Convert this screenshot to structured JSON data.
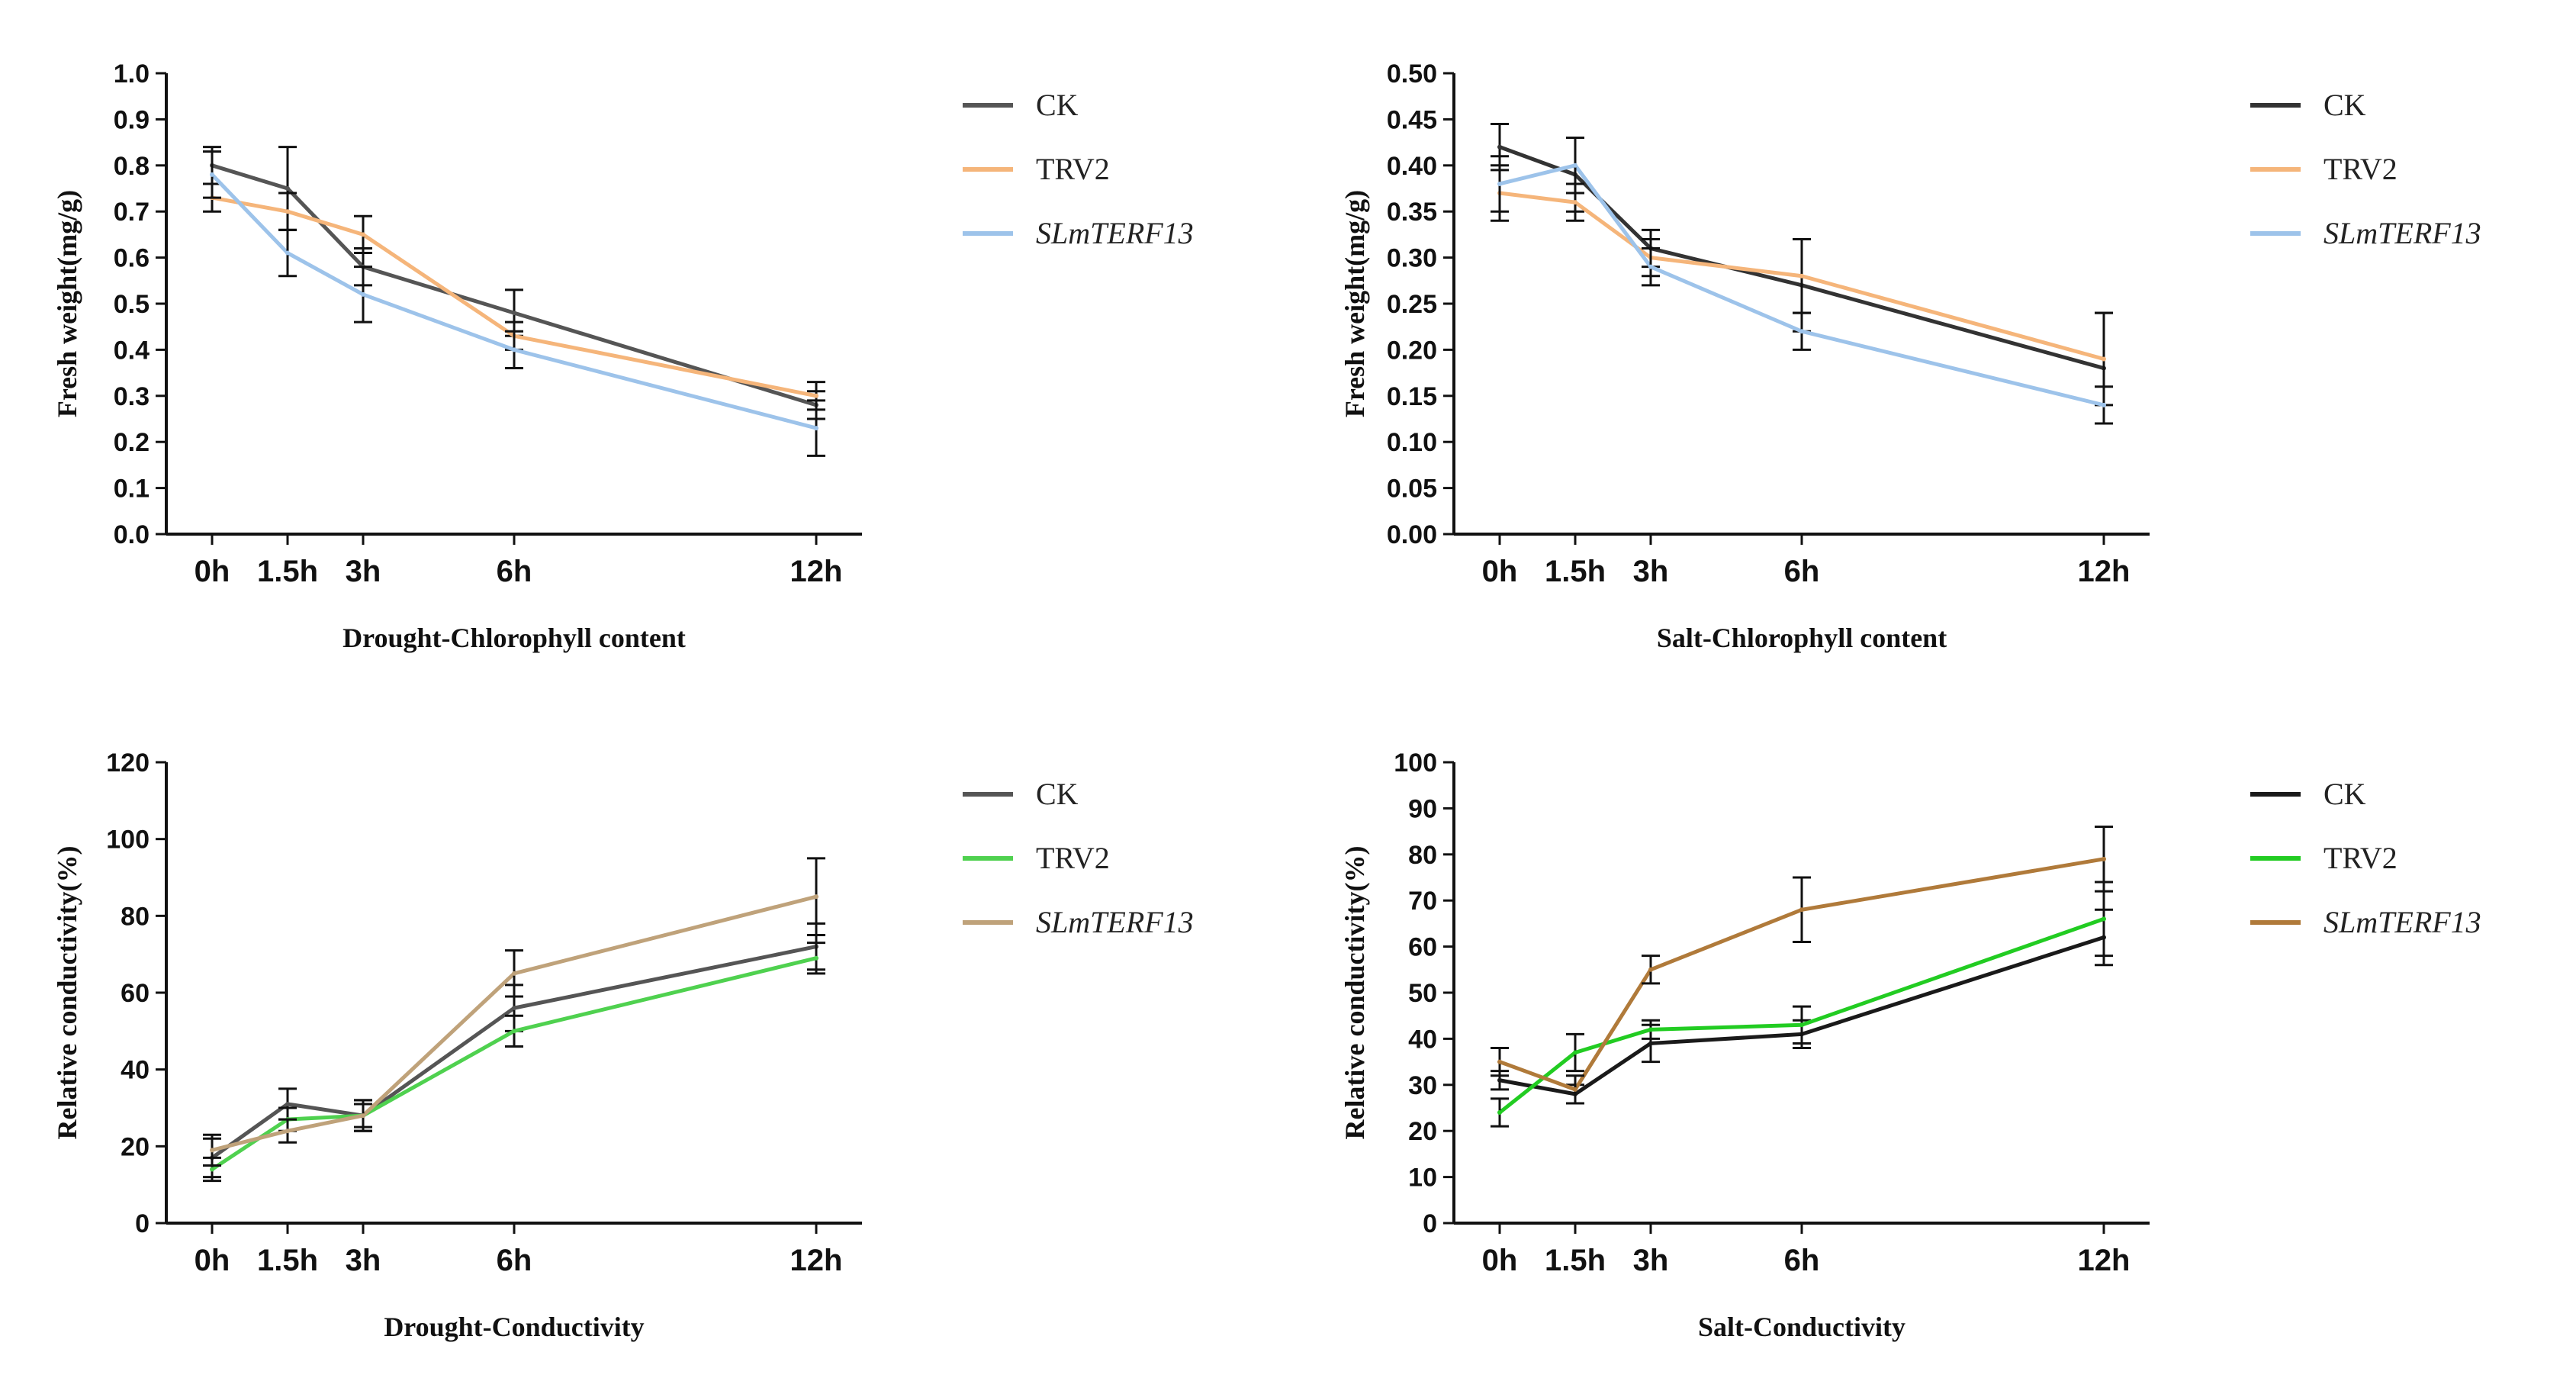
{
  "chart_data": [
    {
      "type": "line",
      "title": "",
      "xlabel": "Drought-Chlorophyll content",
      "ylabel": "Fresh weight(mg/g)",
      "categories": [
        "0h",
        "1.5h",
        "3h",
        "6h",
        "12h"
      ],
      "x": [
        0,
        1.5,
        3,
        6,
        12
      ],
      "ylim": [
        0,
        1.0
      ],
      "yticks": [
        0.0,
        0.1,
        0.2,
        0.3,
        0.4,
        0.5,
        0.6,
        0.7,
        0.8,
        0.9,
        1.0
      ],
      "ytick_labels": [
        "0.0",
        "0.1",
        "0.2",
        "0.3",
        "0.4",
        "0.5",
        "0.6",
        "0.7",
        "0.8",
        "0.9",
        "1.0"
      ],
      "legend_position": "right",
      "series": [
        {
          "name": "CK",
          "italic": false,
          "color": "#555555",
          "values": [
            0.8,
            0.75,
            0.58,
            0.48,
            0.28
          ],
          "errors": [
            0.04,
            0.09,
            0.04,
            0.05,
            0.03
          ]
        },
        {
          "name": "TRV2",
          "italic": false,
          "color": "#F5B57A",
          "values": [
            0.73,
            0.7,
            0.65,
            0.43,
            0.3
          ],
          "errors": [
            0.03,
            0.04,
            0.04,
            0.03,
            0.03
          ]
        },
        {
          "name": "SLmTERF13",
          "italic": true,
          "color": "#9DC3EA",
          "values": [
            0.78,
            0.61,
            0.52,
            0.4,
            0.23
          ],
          "errors": [
            0.05,
            0.05,
            0.06,
            0.04,
            0.06
          ]
        }
      ]
    },
    {
      "type": "line",
      "title": "",
      "xlabel": "Salt-Chlorophyll content",
      "ylabel": "Fresh weight(mg/g)",
      "categories": [
        "0h",
        "1.5h",
        "3h",
        "6h",
        "12h"
      ],
      "x": [
        0,
        1.5,
        3,
        6,
        12
      ],
      "ylim": [
        0,
        0.5
      ],
      "yticks": [
        0.0,
        0.05,
        0.1,
        0.15,
        0.2,
        0.25,
        0.3,
        0.35,
        0.4,
        0.45,
        0.5
      ],
      "ytick_labels": [
        "0.00",
        "0.05",
        "0.10",
        "0.15",
        "0.20",
        "0.25",
        "0.30",
        "0.35",
        "0.40",
        "0.45",
        "0.50"
      ],
      "legend_position": "right",
      "series": [
        {
          "name": "CK",
          "italic": false,
          "color": "#333333",
          "values": [
            0.42,
            0.39,
            0.31,
            0.27,
            0.18
          ],
          "errors": [
            0.025,
            0.04,
            0.02,
            0.05,
            0.06
          ]
        },
        {
          "name": "TRV2",
          "italic": false,
          "color": "#F5B57A",
          "values": [
            0.37,
            0.36,
            0.3,
            0.28,
            0.19
          ],
          "errors": [
            0.03,
            0.02,
            0.02,
            0.04,
            0.05
          ]
        },
        {
          "name": "SLmTERF13",
          "italic": true,
          "color": "#9DC3EA",
          "values": [
            0.38,
            0.4,
            0.29,
            0.22,
            0.14
          ],
          "errors": [
            0.03,
            0.03,
            0.02,
            0.02,
            0.02
          ]
        }
      ]
    },
    {
      "type": "line",
      "title": "",
      "xlabel": "Drought-Conductivity",
      "ylabel": "Relative conductivity(%)",
      "categories": [
        "0h",
        "1.5h",
        "3h",
        "6h",
        "12h"
      ],
      "x": [
        0,
        1.5,
        3,
        6,
        12
      ],
      "ylim": [
        0,
        120
      ],
      "yticks": [
        0,
        20,
        40,
        60,
        80,
        100,
        120
      ],
      "ytick_labels": [
        "0",
        "20",
        "40",
        "60",
        "80",
        "100",
        "120"
      ],
      "legend_position": "right",
      "series": [
        {
          "name": "CK",
          "italic": false,
          "color": "#555555",
          "values": [
            17,
            31,
            28,
            56,
            72
          ],
          "errors": [
            5,
            4,
            4,
            6,
            6
          ]
        },
        {
          "name": "TRV2",
          "italic": false,
          "color": "#4FD14F",
          "values": [
            14,
            27,
            28,
            50,
            69
          ],
          "errors": [
            3,
            3,
            3,
            4,
            4
          ]
        },
        {
          "name": "SLmTERF13",
          "italic": true,
          "color": "#BFA27A",
          "values": [
            19,
            24,
            28,
            65,
            85
          ],
          "errors": [
            4,
            3,
            4,
            6,
            10
          ]
        }
      ]
    },
    {
      "type": "line",
      "title": "",
      "xlabel": "Salt-Conductivity",
      "ylabel": "Relative conductivity(%)",
      "categories": [
        "0h",
        "1.5h",
        "3h",
        "6h",
        "12h"
      ],
      "x": [
        0,
        1.5,
        3,
        6,
        12
      ],
      "ylim": [
        0,
        100
      ],
      "yticks": [
        0,
        10,
        20,
        30,
        40,
        50,
        60,
        70,
        80,
        90,
        100
      ],
      "ytick_labels": [
        "0",
        "10",
        "20",
        "30",
        "40",
        "50",
        "60",
        "70",
        "80",
        "90",
        "100"
      ],
      "legend_position": "right",
      "series": [
        {
          "name": "CK",
          "italic": false,
          "color": "#1a1a1a",
          "values": [
            31,
            28,
            39,
            41,
            62
          ],
          "errors": [
            2,
            2,
            4,
            3,
            6
          ]
        },
        {
          "name": "TRV2",
          "italic": false,
          "color": "#22CC22",
          "values": [
            24,
            37,
            42,
            43,
            66
          ],
          "errors": [
            3,
            4,
            2,
            4,
            8
          ]
        },
        {
          "name": "SLmTERF13",
          "italic": true,
          "color": "#B07A3A",
          "values": [
            35,
            29,
            55,
            68,
            79
          ],
          "errors": [
            3,
            3,
            3,
            7,
            7
          ]
        }
      ]
    }
  ]
}
